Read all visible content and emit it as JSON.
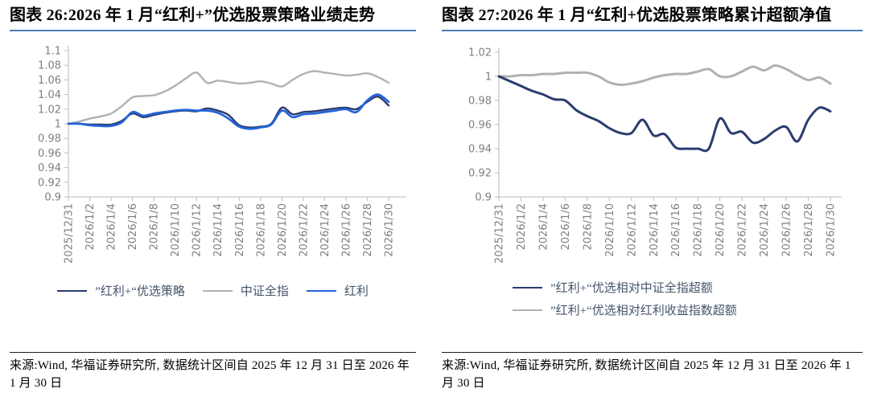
{
  "accent_colors": {
    "title_rule": "#4b7cba",
    "source_rule": "#1f1f1f",
    "navy_line": "#2b3c6e",
    "blue_line": "#2264d9",
    "gray_line": "#b1b1b1",
    "axis_line": "#c6c6c6",
    "tick_label": "#7f7f7f",
    "legend_text": "#44546a"
  },
  "panels": [
    {
      "title": "图表 26:2026 年 1 月“红利+”优选股票策略业绩走势",
      "source": "来源:Wind, 华福证券研究所, 数据统计区间自 2025 年 12 月 31 日至 2026 年 1 月 30 日"
    },
    {
      "title": "图表 27:2026 年 1 月“红利+优选股票策略累计超额净值",
      "source": "来源:Wind, 华福证券研究所, 数据统计区间自 2025 年 12 月 31 日至 2026 年 1 月 30 日"
    }
  ],
  "chart_data": [
    {
      "type": "line",
      "title": "2026年1月“红利+”优选股票策略业绩走势",
      "xlabel": "",
      "ylabel": "",
      "ylim": [
        0.9,
        1.1
      ],
      "grid": false,
      "legend_position": "bottom",
      "yticks": [
        "1.1",
        "1.08",
        "1.06",
        "1.04",
        "1.02",
        "1",
        "0.98",
        "0.96",
        "0.94",
        "0.92",
        "0.9"
      ],
      "x_tick_labels": [
        "2025/12/31",
        "2026/1/2",
        "2026/1/4",
        "2026/1/6",
        "2026/1/8",
        "2026/1/10",
        "2026/1/12",
        "2026/1/14",
        "2026/1/16",
        "2026/1/18",
        "2026/1/20",
        "2026/1/22",
        "2026/1/24",
        "2026/1/26",
        "2026/1/28",
        "2026/1/30"
      ],
      "series": [
        {
          "name": "”红利+“优选策略",
          "color": "#2b3c6e",
          "width": 2.4,
          "values": [
            1.0,
            1.0,
            0.999,
            0.999,
            0.999,
            1.004,
            1.014,
            1.009,
            1.012,
            1.015,
            1.017,
            1.018,
            1.017,
            1.021,
            1.018,
            1.012,
            0.998,
            0.995,
            0.996,
            1.0,
            1.022,
            1.013,
            1.016,
            1.017,
            1.019,
            1.021,
            1.022,
            1.02,
            1.03,
            1.037,
            1.025
          ]
        },
        {
          "name": "中证全指",
          "color": "#b1b1b1",
          "width": 2.4,
          "values": [
            1.0,
            1.003,
            1.007,
            1.01,
            1.014,
            1.024,
            1.036,
            1.038,
            1.039,
            1.044,
            1.052,
            1.062,
            1.07,
            1.056,
            1.059,
            1.057,
            1.055,
            1.056,
            1.058,
            1.055,
            1.051,
            1.06,
            1.068,
            1.072,
            1.07,
            1.068,
            1.066,
            1.067,
            1.069,
            1.064,
            1.056
          ]
        },
        {
          "name": "红利",
          "color": "#2264d9",
          "width": 2.7,
          "values": [
            1.0,
            1.0,
            0.998,
            0.997,
            0.997,
            1.002,
            1.016,
            1.011,
            1.014,
            1.016,
            1.018,
            1.019,
            1.018,
            1.018,
            1.015,
            1.007,
            0.996,
            0.993,
            0.995,
            0.999,
            1.018,
            1.009,
            1.013,
            1.014,
            1.016,
            1.018,
            1.02,
            1.016,
            1.032,
            1.04,
            1.03
          ]
        }
      ]
    },
    {
      "type": "line",
      "title": "2026年1月“红利+优选股票策略累计超额净值",
      "xlabel": "",
      "ylabel": "",
      "ylim": [
        0.9,
        1.02
      ],
      "grid": false,
      "legend_position": "bottom",
      "yticks": [
        "1.02",
        "1",
        "0.98",
        "0.96",
        "0.94",
        "0.92",
        "0.9"
      ],
      "x_tick_labels": [
        "2025/12/31",
        "2026/1/2",
        "2026/1/4",
        "2026/1/6",
        "2026/1/8",
        "2026/1/10",
        "2026/1/12",
        "2026/1/14",
        "2026/1/16",
        "2026/1/18",
        "2026/1/20",
        "2026/1/22",
        "2026/1/24",
        "2026/1/26",
        "2026/1/28",
        "2026/1/30"
      ],
      "series": [
        {
          "name": "”红利+“优选相对中证全指超额",
          "color": "#2b3c6e",
          "width": 3.0,
          "values": [
            1.0,
            0.996,
            0.992,
            0.988,
            0.985,
            0.981,
            0.98,
            0.972,
            0.967,
            0.963,
            0.957,
            0.953,
            0.953,
            0.964,
            0.951,
            0.952,
            0.941,
            0.94,
            0.94,
            0.94,
            0.965,
            0.953,
            0.954,
            0.945,
            0.948,
            0.955,
            0.958,
            0.946,
            0.964,
            0.974,
            0.971
          ]
        },
        {
          "name": "”红利+“优选相对红利收益指数超额",
          "color": "#b1b1b1",
          "width": 3.0,
          "values": [
            1.0,
            1.0,
            1.001,
            1.001,
            1.002,
            1.002,
            1.003,
            1.003,
            1.003,
            1.0,
            0.995,
            0.993,
            0.994,
            0.996,
            0.999,
            1.001,
            1.002,
            1.002,
            1.004,
            1.006,
            1.0,
            1.0,
            1.004,
            1.008,
            1.005,
            1.009,
            1.006,
            1.001,
            0.997,
            0.999,
            0.994
          ]
        }
      ]
    }
  ]
}
